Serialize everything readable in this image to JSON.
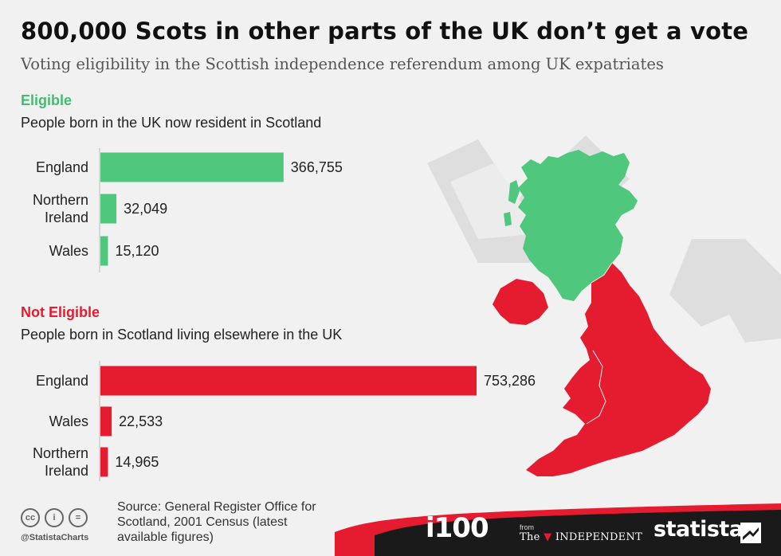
{
  "title": "800,000 Scots in other parts of the UK don’t get a vote",
  "subtitle": "Voting eligibility in the Scottish independence referendum among UK expatriates",
  "colors": {
    "eligible": "#4fc77d",
    "not_eligible": "#e51c2f",
    "axis": "#bbbbbb",
    "footer": "#1a1a1a"
  },
  "chart_data": [
    {
      "type": "bar",
      "orientation": "horizontal",
      "heading": "Eligible",
      "description": "People born in the UK now resident in Scotland",
      "categories": [
        "England",
        "Northern\nIreland",
        "Wales"
      ],
      "values": [
        366755,
        32049,
        15120
      ],
      "value_labels": [
        "366,755",
        "32,049",
        "15,120"
      ],
      "color": "#4fc77d"
    },
    {
      "type": "bar",
      "orientation": "horizontal",
      "heading": "Not Eligible",
      "description": "People born in Scotland living elsewhere in the UK",
      "categories": [
        "England",
        "Wales",
        "Northern\nIreland"
      ],
      "values": [
        753286,
        22533,
        14965
      ],
      "value_labels": [
        "753,286",
        "22,533",
        "14,965"
      ],
      "color": "#e51c2f"
    }
  ],
  "map": {
    "scotland_color": "#4fc77d",
    "rest_of_uk_color": "#e51c2f",
    "icons": [
      "checkmark-watermark-icon",
      "arrow-watermark-icon"
    ]
  },
  "footer": {
    "license_icons": [
      "cc-icon",
      "by-icon",
      "nd-icon"
    ],
    "license_glyphs": [
      "cc",
      "i",
      "="
    ],
    "handle": "@StatistaCharts",
    "source": "Source: General Register Office for Scotland, 2001 Census (latest available figures)",
    "brand_i100": "i100",
    "brand_from": "from",
    "brand_independent": "The INDEPENDENT",
    "brand_statista": "statista"
  }
}
